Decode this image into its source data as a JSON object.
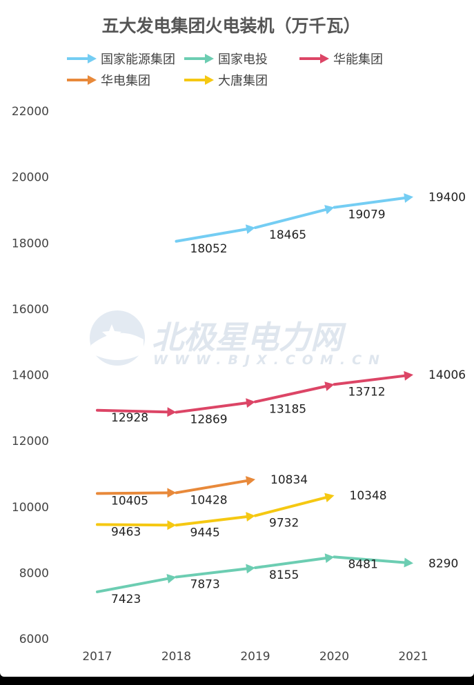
{
  "chart_data": {
    "type": "line",
    "title": "五大发电集团火电装机（万千瓦）",
    "xlabel": "",
    "ylabel": "",
    "categories": [
      "2017",
      "2018",
      "2019",
      "2020",
      "2021"
    ],
    "ylim": [
      6000,
      22000
    ],
    "yticks": [
      6000,
      8000,
      10000,
      12000,
      14000,
      16000,
      18000,
      20000,
      22000
    ],
    "grid": false,
    "legend": "top",
    "series": [
      {
        "name": "国家能源集团",
        "color": "#74cdf3",
        "values": [
          null,
          18052,
          18465,
          19079,
          19400
        ]
      },
      {
        "name": "国家电投",
        "color": "#6ccdb2",
        "values": [
          7423,
          7873,
          8155,
          8481,
          8290
        ]
      },
      {
        "name": "华能集团",
        "color": "#dc4566",
        "values": [
          12928,
          12869,
          13185,
          13712,
          14006
        ]
      },
      {
        "name": "华电集团",
        "color": "#e8893a",
        "values": [
          10405,
          10428,
          10834,
          null,
          null
        ]
      },
      {
        "name": "大唐集团",
        "color": "#f5c812",
        "values": [
          9463,
          9445,
          9732,
          10348,
          null
        ]
      }
    ]
  },
  "watermark": {
    "main": "北极星电力网",
    "sub": "WWW.BJX.COM.CN",
    "logo": "star-cloud-logo"
  }
}
